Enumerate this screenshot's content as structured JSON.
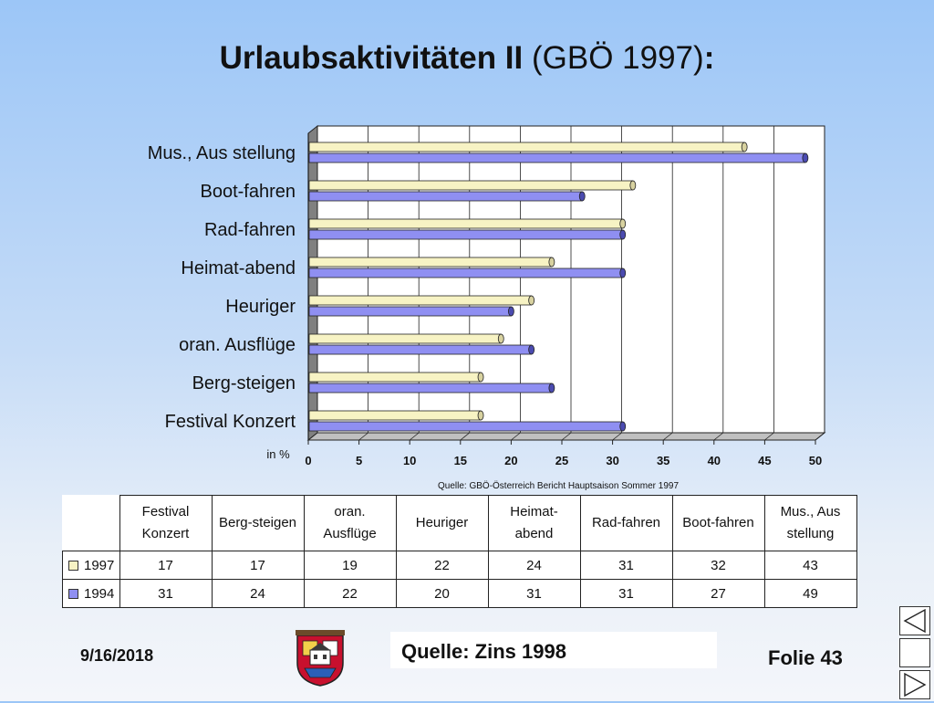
{
  "title": {
    "bold": "Urlaubsaktivitäten II",
    "normal": " (GBÖ 1997)",
    "colon": ":"
  },
  "chart_data": {
    "type": "bar",
    "orientation": "horizontal",
    "categories": [
      "Festival Konzert",
      "Berg-steigen",
      "oran. Ausflüge",
      "Heuriger",
      "Heimat-abend",
      "Rad-fahren",
      "Boot-fahren",
      "Mus., Aus stellung"
    ],
    "series": [
      {
        "name": "1997",
        "values": [
          17,
          17,
          19,
          22,
          24,
          31,
          32,
          43
        ],
        "color": "#f7f3c4"
      },
      {
        "name": "1994",
        "values": [
          31,
          24,
          22,
          20,
          31,
          31,
          27,
          49
        ],
        "color": "#8f8ff2"
      }
    ],
    "xlim": [
      0,
      50
    ],
    "xticks": [
      "0",
      "5",
      "10",
      "15",
      "20",
      "25",
      "30",
      "35",
      "40",
      "45",
      "50"
    ],
    "xlabel": "in %",
    "source_note": "Quelle: GBÖ-Österreich Bericht Hauptsaison Sommer 1997",
    "grid": true
  },
  "table": {
    "headers": [
      [
        "Festival",
        "Konzert"
      ],
      [
        "Berg-steigen"
      ],
      [
        "oran.",
        "Ausflüge"
      ],
      [
        "Heuriger"
      ],
      [
        "Heimat-",
        "abend"
      ],
      [
        "Rad-fahren"
      ],
      [
        "Boot-fahren"
      ],
      [
        "Mus., Aus",
        "stellung"
      ]
    ],
    "rows": [
      {
        "label": "1997",
        "color": "#f7f3c4",
        "values": [
          "17",
          "17",
          "19",
          "22",
          "24",
          "31",
          "32",
          "43"
        ]
      },
      {
        "label": "1994",
        "color": "#8f8ff2",
        "values": [
          "31",
          "24",
          "22",
          "20",
          "31",
          "31",
          "27",
          "49"
        ]
      }
    ]
  },
  "footer": {
    "date": "9/16/2018",
    "source": "Quelle: Zins 1998",
    "slide": "Folie 43"
  },
  "nav_icons": [
    "prev-triangle-icon",
    "home-blank-icon",
    "next-triangle-icon"
  ]
}
